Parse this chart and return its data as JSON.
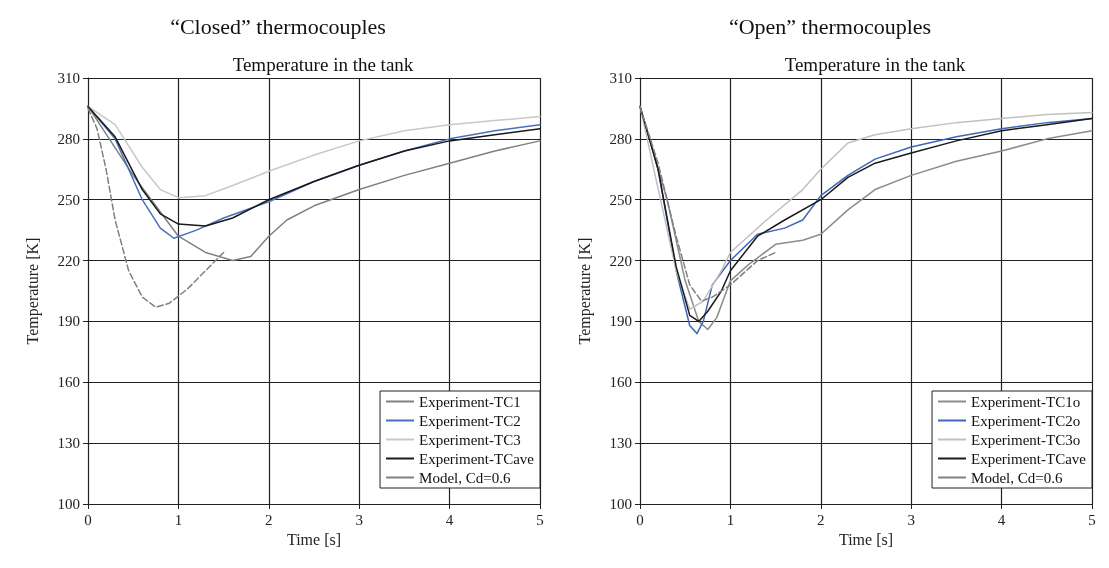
{
  "chart_data": [
    {
      "type": "line",
      "title": "“Closed” thermocouples",
      "subtitle": "Temperature in the tank",
      "xlabel": "Time [s]",
      "ylabel": "Temperature [K]",
      "xlim": [
        0,
        5
      ],
      "xticks": [
        0,
        1,
        2,
        3,
        4,
        5
      ],
      "ylim": [
        100,
        310
      ],
      "yticks": [
        100,
        130,
        160,
        190,
        220,
        250,
        280,
        310
      ],
      "grid": true,
      "legend": "bottom right",
      "marker": "none",
      "series": [
        {
          "name": "Experiment-TC1",
          "color": "#808080",
          "x": [
            0,
            0.5,
            1,
            1.3,
            1.6,
            1.8,
            2,
            2.2,
            2.5,
            3,
            3.5,
            4,
            4.5,
            5
          ],
          "values": [
            296,
            262,
            232,
            224,
            220,
            222,
            232,
            240,
            247,
            255,
            262,
            268,
            274,
            279
          ]
        },
        {
          "name": "Experiment-TC2",
          "color": "#4a6fbf",
          "x": [
            0,
            0.3,
            0.6,
            0.8,
            0.95,
            1.2,
            1.5,
            2,
            2.5,
            3,
            3.5,
            4,
            4.5,
            5
          ],
          "values": [
            296,
            280,
            250,
            236,
            231,
            235,
            241,
            249,
            259,
            267,
            274,
            280,
            284,
            287
          ]
        },
        {
          "name": "Experiment-TC3",
          "color": "#c8c8c8",
          "x": [
            0,
            0.3,
            0.6,
            0.8,
            1,
            1.3,
            1.6,
            2,
            2.5,
            3,
            3.5,
            4,
            4.5,
            5
          ],
          "values": [
            296,
            287,
            266,
            255,
            251,
            252,
            257,
            264,
            272,
            279,
            284,
            287,
            289,
            291
          ]
        },
        {
          "name": "Experiment-TCave",
          "color": "#1a1a1a",
          "x": [
            0,
            0.3,
            0.6,
            0.8,
            1,
            1.3,
            1.6,
            2,
            2.5,
            3,
            3.5,
            4,
            4.5,
            5
          ],
          "values": [
            296,
            281,
            255,
            243,
            238,
            237,
            241,
            250,
            259,
            267,
            274,
            279,
            282,
            285
          ]
        },
        {
          "name": "Model, Cd=0.6",
          "color": "#808080",
          "line_style": "dashed",
          "x": [
            0,
            0.1,
            0.2,
            0.3,
            0.45,
            0.6,
            0.75,
            0.9,
            1.1,
            1.3,
            1.5
          ],
          "values": [
            295,
            285,
            265,
            240,
            215,
            202,
            197,
            199,
            206,
            215,
            224
          ]
        }
      ]
    },
    {
      "type": "line",
      "title": "“Open” thermocouples",
      "subtitle": "Temperature in the tank",
      "xlabel": "Time [s]",
      "ylabel": "Temperature [K]",
      "xlim": [
        0,
        5
      ],
      "xticks": [
        0,
        1,
        2,
        3,
        4,
        5
      ],
      "ylim": [
        100,
        310
      ],
      "yticks": [
        100,
        130,
        160,
        190,
        220,
        250,
        280,
        310
      ],
      "grid": true,
      "legend": "bottom right",
      "marker": "none",
      "series": [
        {
          "name": "Experiment-TC1o",
          "color": "#8c8c8c",
          "x": [
            0,
            0.3,
            0.5,
            0.65,
            0.75,
            0.85,
            1,
            1.2,
            1.5,
            1.8,
            2,
            2.3,
            2.6,
            3,
            3.5,
            4,
            4.5,
            5
          ],
          "values": [
            296,
            250,
            210,
            190,
            186,
            192,
            210,
            218,
            228,
            230,
            233,
            245,
            255,
            262,
            269,
            274,
            280,
            284
          ]
        },
        {
          "name": "Experiment-TC2o",
          "color": "#3f66b8",
          "x": [
            0,
            0.2,
            0.4,
            0.55,
            0.63,
            0.7,
            0.8,
            1,
            1.3,
            1.6,
            1.8,
            2,
            2.3,
            2.6,
            3,
            3.5,
            4,
            4.5,
            5
          ],
          "values": [
            296,
            265,
            215,
            188,
            184,
            190,
            208,
            220,
            233,
            236,
            240,
            252,
            262,
            270,
            276,
            281,
            285,
            288,
            290
          ]
        },
        {
          "name": "Experiment-TC3o",
          "color": "#c0c0c0",
          "x": [
            0,
            0.4,
            0.55,
            0.7,
            0.9,
            1,
            1.4,
            1.8,
            2,
            2.3,
            2.6,
            3,
            3.5,
            4,
            4.5,
            5
          ],
          "values": [
            296,
            215,
            196,
            200,
            215,
            224,
            240,
            255,
            265,
            278,
            282,
            285,
            288,
            290,
            292,
            293
          ]
        },
        {
          "name": "Experiment-TCave",
          "color": "#1a1a1a",
          "x": [
            0,
            0.2,
            0.4,
            0.55,
            0.65,
            0.75,
            0.9,
            1,
            1.3,
            1.6,
            2,
            2.3,
            2.6,
            3,
            3.5,
            4,
            4.5,
            5
          ],
          "values": [
            296,
            265,
            217,
            193,
            190,
            195,
            205,
            215,
            232,
            240,
            250,
            261,
            268,
            273,
            279,
            284,
            287,
            290
          ]
        },
        {
          "name": "Model, Cd=0.6",
          "color": "#808080",
          "line_style": "dashed",
          "x": [
            0,
            0.2,
            0.4,
            0.55,
            0.68,
            0.8,
            1,
            1.3,
            1.5
          ],
          "values": [
            296,
            268,
            232,
            208,
            200,
            202,
            208,
            220,
            224
          ]
        }
      ]
    }
  ]
}
